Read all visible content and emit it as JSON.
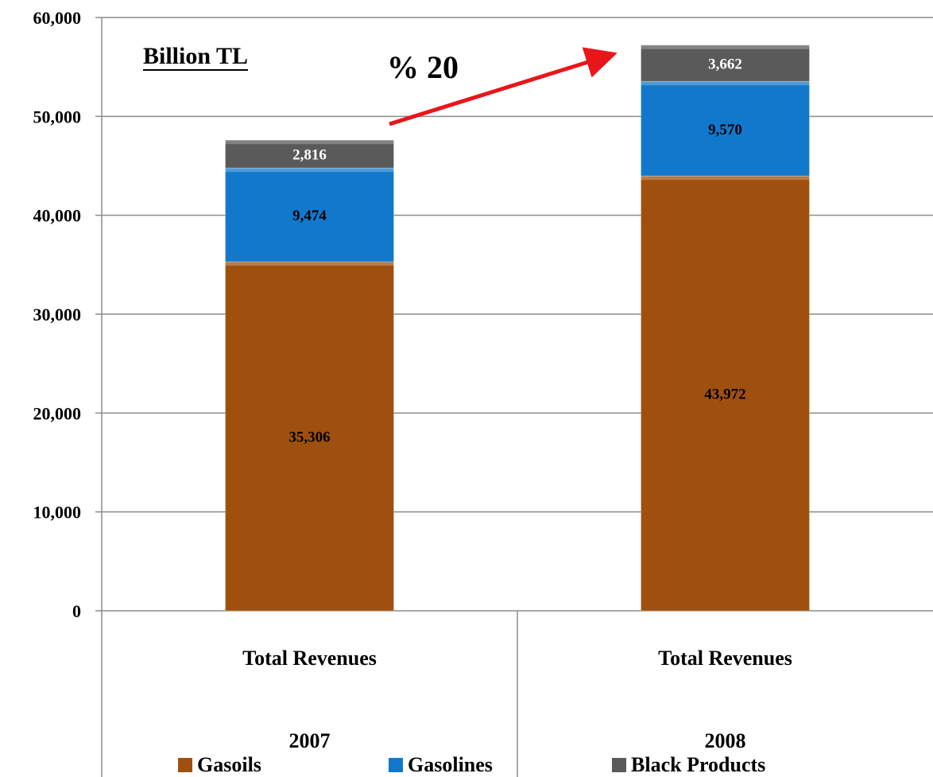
{
  "chart_data": {
    "type": "bar",
    "stacked": true,
    "title": "Billion TL",
    "annotation": "% 20",
    "categories": [
      {
        "label": "Total Revenues",
        "group": "2007"
      },
      {
        "label": "Total Revenues",
        "group": "2008"
      }
    ],
    "series": [
      {
        "name": "Gasoils",
        "color": "#A0500E",
        "values": [
          35306,
          43972
        ],
        "labels": [
          "35,306",
          "43,972"
        ],
        "label_color": "#000000"
      },
      {
        "name": "Gasolines",
        "color": "#1278CC",
        "values": [
          9474,
          9570
        ],
        "labels": [
          "9,474",
          "9,570"
        ],
        "label_color": "#000000"
      },
      {
        "name": "Black Products",
        "color": "#5A5A5A",
        "values": [
          2816,
          3662
        ],
        "labels": [
          "2,816",
          "3,662"
        ],
        "label_color": "#ffffff"
      }
    ],
    "ylim": [
      0,
      60000
    ],
    "yticks": [
      0,
      10000,
      20000,
      30000,
      40000,
      50000,
      60000
    ],
    "ytick_labels": [
      "0",
      "10,000",
      "20,000",
      "30,000",
      "40,000",
      "50,000",
      "60,000"
    ],
    "grid": true,
    "legend_position": "bottom",
    "arrow_color": "#E8161B"
  }
}
